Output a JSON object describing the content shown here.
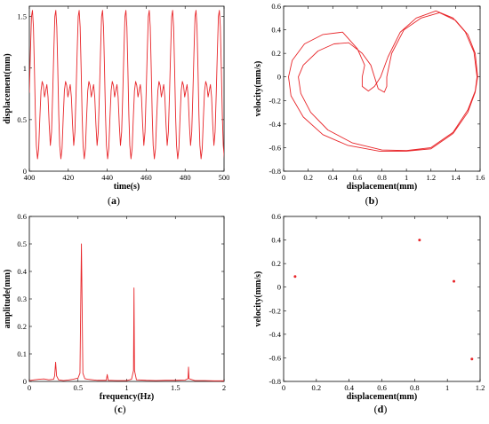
{
  "colors": {
    "trace": "#e8262a",
    "axis": "#000000"
  },
  "chart_data": [
    {
      "panel": "(a)",
      "panel_letter": "a",
      "type": "line",
      "xlabel": "time(s)",
      "ylabel": "displacement(mm)",
      "xlim": [
        400,
        500
      ],
      "ylim": [
        0,
        1.6
      ],
      "xticks": [
        "400",
        "420",
        "440",
        "460",
        "480",
        "500"
      ],
      "yticks": [
        "0",
        "0.5",
        "1",
        "1.5"
      ],
      "period": 12.0,
      "series": [
        {
          "points": [
            [
              0.0,
              0.76
            ],
            [
              0.55,
              1.15
            ],
            [
              1.1,
              1.5
            ],
            [
              1.6,
              1.56
            ],
            [
              2.1,
              1.4
            ],
            [
              2.6,
              1.0
            ],
            [
              3.1,
              0.55
            ],
            [
              3.6,
              0.25
            ],
            [
              4.2,
              0.12
            ],
            [
              4.8,
              0.22
            ],
            [
              5.4,
              0.52
            ],
            [
              6.0,
              0.78
            ],
            [
              6.6,
              0.87
            ],
            [
              7.2,
              0.83
            ],
            [
              7.8,
              0.72
            ],
            [
              8.4,
              0.78
            ],
            [
              9.0,
              0.84
            ],
            [
              9.6,
              0.72
            ],
            [
              10.2,
              0.45
            ],
            [
              10.8,
              0.25
            ],
            [
              11.4,
              0.38
            ],
            [
              12.0,
              0.76
            ]
          ]
        }
      ]
    },
    {
      "panel": "(b)",
      "panel_letter": "b",
      "type": "line",
      "xlabel": "displacement(mm)",
      "ylabel": "velocity(mm/s)",
      "xlim": [
        0,
        1.6
      ],
      "ylim": [
        -0.8,
        0.6
      ],
      "xticks": [
        "0",
        "0.2",
        "0.4",
        "0.6",
        "0.8",
        "1",
        "1.2",
        "1.4",
        "1.6"
      ],
      "yticks": [
        "-0.8",
        "-0.6",
        "-0.4",
        "-0.2",
        "0",
        "0.2",
        "0.4",
        "0.6"
      ],
      "series": [
        {
          "points": [
            [
              1.58,
              0.0
            ],
            [
              1.56,
              0.2
            ],
            [
              1.5,
              0.36
            ],
            [
              1.4,
              0.48
            ],
            [
              1.27,
              0.545
            ],
            [
              1.12,
              0.5
            ],
            [
              0.98,
              0.4
            ],
            [
              0.88,
              0.2
            ],
            [
              0.84,
              0.0
            ],
            [
              0.84,
              -0.08
            ],
            [
              0.82,
              -0.13
            ],
            [
              0.77,
              -0.1
            ],
            [
              0.74,
              0.0
            ],
            [
              0.71,
              0.1
            ],
            [
              0.64,
              0.2
            ],
            [
              0.53,
              0.29
            ],
            [
              0.41,
              0.28
            ],
            [
              0.28,
              0.22
            ],
            [
              0.16,
              0.1
            ],
            [
              0.12,
              0.0
            ],
            [
              0.14,
              -0.14
            ],
            [
              0.22,
              -0.3
            ],
            [
              0.36,
              -0.45
            ],
            [
              0.56,
              -0.56
            ],
            [
              0.8,
              -0.62
            ],
            [
              1.0,
              -0.625
            ],
            [
              1.2,
              -0.6
            ],
            [
              1.38,
              -0.47
            ],
            [
              1.5,
              -0.28
            ],
            [
              1.56,
              -0.12
            ],
            [
              1.575,
              0.0
            ],
            [
              1.55,
              0.21
            ],
            [
              1.48,
              0.38
            ],
            [
              1.38,
              0.5
            ],
            [
              1.24,
              0.56
            ],
            [
              1.08,
              0.5
            ],
            [
              0.95,
              0.38
            ],
            [
              0.85,
              0.17
            ],
            [
              0.79,
              0.0
            ],
            [
              0.74,
              -0.08
            ],
            [
              0.69,
              -0.12
            ],
            [
              0.64,
              -0.08
            ],
            [
              0.64,
              0.0
            ],
            [
              0.66,
              0.1
            ],
            [
              0.6,
              0.24
            ],
            [
              0.48,
              0.38
            ],
            [
              0.32,
              0.36
            ],
            [
              0.17,
              0.28
            ],
            [
              0.07,
              0.14
            ],
            [
              0.04,
              0.0
            ],
            [
              0.06,
              -0.16
            ],
            [
              0.16,
              -0.34
            ],
            [
              0.32,
              -0.49
            ],
            [
              0.52,
              -0.58
            ],
            [
              0.78,
              -0.63
            ],
            [
              1.0,
              -0.63
            ],
            [
              1.2,
              -0.61
            ],
            [
              1.38,
              -0.48
            ],
            [
              1.5,
              -0.3
            ],
            [
              1.56,
              -0.13
            ],
            [
              1.58,
              0.0
            ]
          ]
        }
      ]
    },
    {
      "panel": "(c)",
      "panel_letter": "c",
      "type": "line",
      "xlabel": "frequency(Hz)",
      "ylabel": "amplitude(mm)",
      "xlim": [
        0,
        2
      ],
      "ylim": [
        0,
        0.6
      ],
      "xticks": [
        "0",
        "0.5",
        "1",
        "1.5",
        "2"
      ],
      "yticks": [
        "0",
        "0.1",
        "0.2",
        "0.3",
        "0.4",
        "0.5",
        "0.6"
      ],
      "series": [
        {
          "points": [
            [
              0.0,
              0.003
            ],
            [
              0.05,
              0.006
            ],
            [
              0.1,
              0.008
            ],
            [
              0.15,
              0.009
            ],
            [
              0.2,
              0.006
            ],
            [
              0.25,
              0.008
            ],
            [
              0.26,
              0.02
            ],
            [
              0.27,
              0.07
            ],
            [
              0.28,
              0.02
            ],
            [
              0.3,
              0.006
            ],
            [
              0.35,
              0.003
            ],
            [
              0.4,
              0.005
            ],
            [
              0.45,
              0.008
            ],
            [
              0.5,
              0.012
            ],
            [
              0.52,
              0.03
            ],
            [
              0.535,
              0.5
            ],
            [
              0.55,
              0.03
            ],
            [
              0.57,
              0.01
            ],
            [
              0.6,
              0.008
            ],
            [
              0.7,
              0.004
            ],
            [
              0.79,
              0.004
            ],
            [
              0.8,
              0.025
            ],
            [
              0.81,
              0.004
            ],
            [
              0.9,
              0.003
            ],
            [
              1.0,
              0.003
            ],
            [
              1.05,
              0.008
            ],
            [
              1.07,
              0.04
            ],
            [
              1.075,
              0.34
            ],
            [
              1.08,
              0.04
            ],
            [
              1.1,
              0.006
            ],
            [
              1.2,
              0.004
            ],
            [
              1.3,
              0.003
            ],
            [
              1.4,
              0.004
            ],
            [
              1.5,
              0.004
            ],
            [
              1.6,
              0.005
            ],
            [
              1.63,
              0.01
            ],
            [
              1.635,
              0.052
            ],
            [
              1.64,
              0.01
            ],
            [
              1.7,
              0.003
            ],
            [
              1.8,
              0.003
            ],
            [
              1.9,
              0.002
            ],
            [
              2.0,
              0.002
            ]
          ]
        }
      ]
    },
    {
      "panel": "(d)",
      "panel_letter": "d",
      "type": "scatter",
      "xlabel": "displacement(mm)",
      "ylabel": "velocity(mm/s)",
      "xlim": [
        0,
        1.2
      ],
      "ylim": [
        -0.8,
        0.6
      ],
      "xticks": [
        "0",
        "0.2",
        "0.4",
        "0.6",
        "0.8",
        "1",
        "1.2"
      ],
      "yticks": [
        "-0.8",
        "-0.6",
        "-0.4",
        "-0.2",
        "0",
        "0.2",
        "0.4",
        "0.6"
      ],
      "series": [
        {
          "points": [
            [
              0.07,
              0.09
            ],
            [
              0.83,
              0.4
            ],
            [
              1.04,
              0.05
            ],
            [
              1.15,
              -0.61
            ]
          ]
        }
      ]
    }
  ]
}
